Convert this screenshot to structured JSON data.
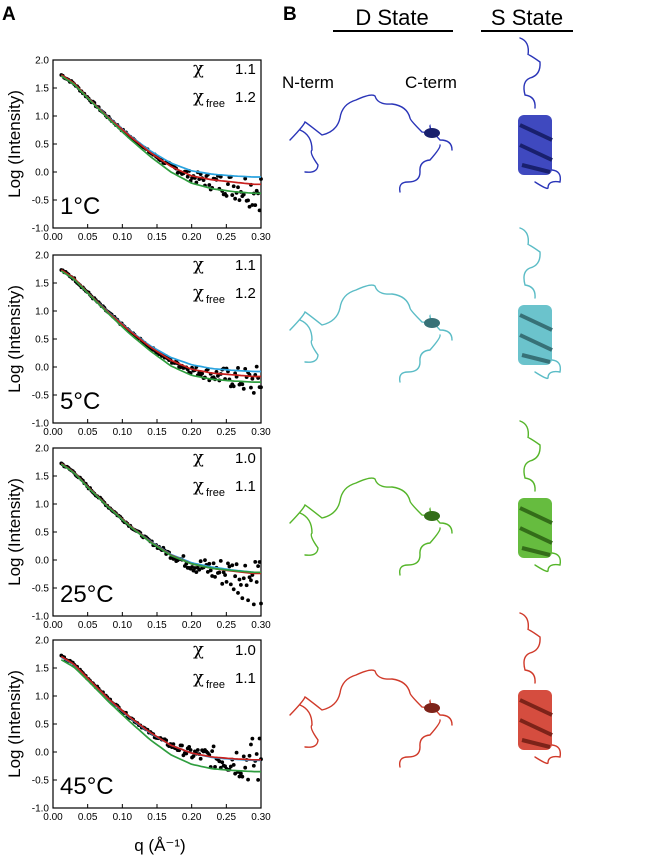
{
  "panels": {
    "a_letter": "A",
    "b_letter": "B"
  },
  "structures": {
    "d_state_label": "D State",
    "s_state_label": "S State",
    "n_term_label": "N-term",
    "c_term_label": "C-term",
    "rows": [
      {
        "temperature": "1°C",
        "color": "#2a35b8"
      },
      {
        "temperature": "5°C",
        "color": "#5bbcc6"
      },
      {
        "temperature": "25°C",
        "color": "#55b52a"
      },
      {
        "temperature": "45°C",
        "color": "#d03a2a"
      }
    ]
  },
  "chart_data": [
    {
      "type": "scatter",
      "label": "1°C",
      "chi": "1.1",
      "chi_free": "1.2",
      "chi_symbol": "χ",
      "chi_free_subscript": "free",
      "xlabel": "q (Å⁻¹)",
      "ylabel": "Log (Intensity)",
      "xlim": [
        0.0,
        0.3
      ],
      "ylim": [
        -1.0,
        2.0
      ],
      "xticks": [
        "0.00",
        "0.05",
        "0.10",
        "0.15",
        "0.20",
        "0.25",
        "0.30"
      ],
      "yticks": [
        "-1.0",
        "-0.5",
        "0.0",
        "0.5",
        "1.0",
        "1.5",
        "2.0"
      ],
      "scatter_tail_spread": 0.15,
      "series": [
        {
          "color": "#2aa3df",
          "x": [
            0.01,
            0.03,
            0.05,
            0.08,
            0.11,
            0.14,
            0.17,
            0.2,
            0.23,
            0.26,
            0.29
          ],
          "y": [
            1.74,
            1.58,
            1.33,
            0.98,
            0.66,
            0.38,
            0.16,
            0.02,
            -0.04,
            -0.07,
            -0.09
          ]
        },
        {
          "color": "#c8201e",
          "x": [
            0.01,
            0.03,
            0.05,
            0.08,
            0.11,
            0.14,
            0.17,
            0.2,
            0.23,
            0.26,
            0.29
          ],
          "y": [
            1.75,
            1.59,
            1.33,
            0.97,
            0.65,
            0.35,
            0.1,
            -0.07,
            -0.14,
            -0.18,
            -0.22
          ]
        },
        {
          "color": "#2f9e3f",
          "x": [
            0.01,
            0.03,
            0.05,
            0.08,
            0.11,
            0.14,
            0.17,
            0.2,
            0.23,
            0.26,
            0.29
          ],
          "y": [
            1.73,
            1.57,
            1.32,
            0.95,
            0.6,
            0.28,
            0.0,
            -0.2,
            -0.3,
            -0.35,
            -0.38
          ]
        }
      ],
      "data_trend": {
        "x": [
          0.01,
          0.03,
          0.05,
          0.08,
          0.11,
          0.14,
          0.17,
          0.2,
          0.23,
          0.26,
          0.29
        ],
        "y": [
          1.75,
          1.58,
          1.33,
          0.97,
          0.64,
          0.35,
          0.1,
          -0.08,
          -0.18,
          -0.25,
          -0.32
        ]
      }
    },
    {
      "type": "scatter",
      "label": "5°C",
      "chi": "1.1",
      "chi_free": "1.2",
      "chi_symbol": "χ",
      "chi_free_subscript": "free",
      "xlabel": "q (Å⁻¹)",
      "ylabel": "Log (Intensity)",
      "xlim": [
        0.0,
        0.3
      ],
      "ylim": [
        -1.0,
        2.0
      ],
      "xticks": [
        "0.00",
        "0.05",
        "0.10",
        "0.15",
        "0.20",
        "0.25",
        "0.30"
      ],
      "yticks": [
        "-1.0",
        "-0.5",
        "0.0",
        "0.5",
        "1.0",
        "1.5",
        "2.0"
      ],
      "scatter_tail_spread": 0.12,
      "series": [
        {
          "color": "#2aa3df",
          "x": [
            0.01,
            0.03,
            0.05,
            0.08,
            0.11,
            0.14,
            0.17,
            0.2,
            0.23,
            0.26,
            0.29
          ],
          "y": [
            1.74,
            1.58,
            1.33,
            0.98,
            0.66,
            0.38,
            0.17,
            0.04,
            -0.03,
            -0.06,
            -0.08
          ]
        },
        {
          "color": "#c8201e",
          "x": [
            0.01,
            0.03,
            0.05,
            0.08,
            0.11,
            0.14,
            0.17,
            0.2,
            0.23,
            0.26,
            0.29
          ],
          "y": [
            1.75,
            1.59,
            1.33,
            0.97,
            0.65,
            0.36,
            0.12,
            -0.04,
            -0.11,
            -0.14,
            -0.17
          ]
        },
        {
          "color": "#2f9e3f",
          "x": [
            0.01,
            0.03,
            0.05,
            0.08,
            0.11,
            0.14,
            0.17,
            0.2,
            0.23,
            0.26,
            0.29
          ],
          "y": [
            1.73,
            1.57,
            1.32,
            0.95,
            0.6,
            0.29,
            0.02,
            -0.15,
            -0.22,
            -0.25,
            -0.27
          ]
        }
      ],
      "data_trend": {
        "x": [
          0.01,
          0.03,
          0.05,
          0.08,
          0.11,
          0.14,
          0.17,
          0.2,
          0.23,
          0.26,
          0.29
        ],
        "y": [
          1.75,
          1.58,
          1.33,
          0.97,
          0.64,
          0.35,
          0.11,
          -0.05,
          -0.14,
          -0.2,
          -0.26
        ]
      }
    },
    {
      "type": "scatter",
      "label": "25°C",
      "chi": "1.0",
      "chi_free": "1.1",
      "chi_symbol": "χ",
      "chi_free_subscript": "free",
      "xlabel": "q (Å⁻¹)",
      "ylabel": "Log (Intensity)",
      "xlim": [
        0.0,
        0.3
      ],
      "ylim": [
        -1.0,
        2.0
      ],
      "xticks": [
        "0.00",
        "0.05",
        "0.10",
        "0.15",
        "0.20",
        "0.25",
        "0.30"
      ],
      "yticks": [
        "-1.0",
        "-0.5",
        "0.0",
        "0.5",
        "1.0",
        "1.5",
        "2.0"
      ],
      "scatter_tail_spread": 0.22,
      "series": [
        {
          "color": "#2aa3df",
          "x": [
            0.01,
            0.03,
            0.05,
            0.08,
            0.11,
            0.14,
            0.17,
            0.2,
            0.23,
            0.26,
            0.29
          ],
          "y": [
            1.74,
            1.57,
            1.31,
            0.95,
            0.62,
            0.34,
            0.1,
            -0.05,
            -0.13,
            -0.18,
            -0.22
          ]
        },
        {
          "color": "#c8201e",
          "x": [
            0.01,
            0.03,
            0.05,
            0.08,
            0.11,
            0.14,
            0.17,
            0.2,
            0.23,
            0.26,
            0.29
          ],
          "y": [
            1.74,
            1.57,
            1.31,
            0.95,
            0.62,
            0.33,
            0.09,
            -0.07,
            -0.15,
            -0.2,
            -0.24
          ]
        },
        {
          "color": "#2f9e3f",
          "x": [
            0.01,
            0.03,
            0.05,
            0.08,
            0.11,
            0.14,
            0.17,
            0.2,
            0.23,
            0.26,
            0.29
          ],
          "y": [
            1.73,
            1.56,
            1.3,
            0.94,
            0.61,
            0.32,
            0.08,
            -0.07,
            -0.15,
            -0.19,
            -0.22
          ]
        }
      ],
      "data_trend": {
        "x": [
          0.01,
          0.03,
          0.05,
          0.08,
          0.11,
          0.14,
          0.17,
          0.2,
          0.23,
          0.26,
          0.29
        ],
        "y": [
          1.74,
          1.57,
          1.31,
          0.95,
          0.62,
          0.33,
          0.09,
          -0.08,
          -0.18,
          -0.25,
          -0.32
        ]
      }
    },
    {
      "type": "scatter",
      "label": "45°C",
      "chi": "1.0",
      "chi_free": "1.1",
      "chi_symbol": "χ",
      "chi_free_subscript": "free",
      "xlabel": "q (Å⁻¹)",
      "ylabel": "Log (Intensity)",
      "xlim": [
        0.0,
        0.3
      ],
      "ylim": [
        -1.0,
        2.0
      ],
      "xticks": [
        "0.00",
        "0.05",
        "0.10",
        "0.15",
        "0.20",
        "0.25",
        "0.30"
      ],
      "yticks": [
        "-1.0",
        "-0.5",
        "0.0",
        "0.5",
        "1.0",
        "1.5",
        "2.0"
      ],
      "scatter_tail_spread": 0.2,
      "series": [
        {
          "color": "#2aa3df",
          "x": [
            0.01,
            0.03,
            0.05,
            0.08,
            0.11,
            0.14,
            0.17,
            0.2,
            0.23,
            0.26,
            0.29
          ],
          "y": [
            1.71,
            1.56,
            1.31,
            0.94,
            0.62,
            0.34,
            0.12,
            -0.02,
            -0.1,
            -0.13,
            -0.15
          ]
        },
        {
          "color": "#c8201e",
          "x": [
            0.01,
            0.03,
            0.05,
            0.08,
            0.11,
            0.14,
            0.17,
            0.2,
            0.23,
            0.26,
            0.29
          ],
          "y": [
            1.72,
            1.57,
            1.32,
            0.95,
            0.63,
            0.35,
            0.12,
            -0.02,
            -0.09,
            -0.12,
            -0.14
          ]
        },
        {
          "color": "#2f9e3f",
          "x": [
            0.01,
            0.03,
            0.05,
            0.08,
            0.11,
            0.14,
            0.17,
            0.2,
            0.23,
            0.26,
            0.29
          ],
          "y": [
            1.66,
            1.52,
            1.28,
            0.9,
            0.55,
            0.22,
            -0.05,
            -0.22,
            -0.3,
            -0.33,
            -0.35
          ]
        }
      ],
      "data_trend": {
        "x": [
          0.01,
          0.03,
          0.05,
          0.08,
          0.11,
          0.14,
          0.17,
          0.2,
          0.23,
          0.26,
          0.29
        ],
        "y": [
          1.72,
          1.57,
          1.32,
          0.95,
          0.63,
          0.34,
          0.12,
          -0.03,
          -0.1,
          -0.13,
          -0.16
        ]
      }
    }
  ]
}
